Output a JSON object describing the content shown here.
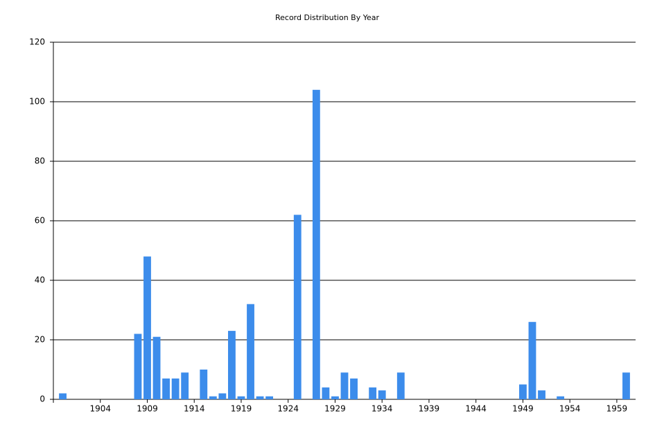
{
  "chart_data": {
    "type": "bar",
    "title": "Record Distribution By Year",
    "x": [
      1900,
      1908,
      1909,
      1910,
      1911,
      1912,
      1913,
      1915,
      1916,
      1917,
      1918,
      1919,
      1920,
      1921,
      1922,
      1925,
      1927,
      1928,
      1929,
      1930,
      1931,
      1933,
      1934,
      1936,
      1949,
      1950,
      1951,
      1953,
      1960
    ],
    "values": [
      2,
      22,
      48,
      21,
      7,
      7,
      9,
      10,
      1,
      2,
      23,
      1,
      32,
      1,
      1,
      62,
      104,
      4,
      1,
      9,
      7,
      4,
      3,
      9,
      5,
      26,
      3,
      1,
      9
    ],
    "color": "#3c8ceb",
    "xlim": [
      1899,
      1961
    ],
    "xticks": [
      1904,
      1909,
      1914,
      1919,
      1924,
      1929,
      1934,
      1939,
      1944,
      1949,
      1954,
      1959
    ],
    "ylim": [
      0,
      120
    ],
    "yticks": [
      0,
      20,
      40,
      60,
      80,
      100,
      120
    ],
    "grid": true
  }
}
